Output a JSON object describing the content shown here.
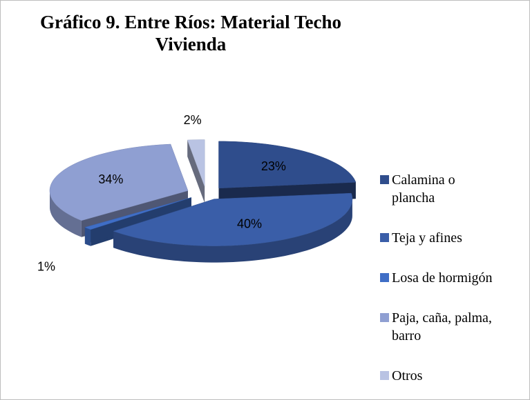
{
  "chart_data": {
    "type": "pie3d",
    "title": "Gráfico 9. Entre Ríos: Material Techo Vivienda",
    "categories": [
      "Calamina o plancha",
      "Teja y afines",
      "Losa de hormigón",
      "Paja, caña, palma, barro",
      "Otros"
    ],
    "values": [
      23,
      40,
      1,
      34,
      2
    ],
    "value_labels": [
      "23%",
      "40%",
      "1%",
      "34%",
      "2%"
    ],
    "colors": [
      "#2f4d8c",
      "#3a5ea8",
      "#3f6ec6",
      "#8f9fd2",
      "#b9c3e3"
    ],
    "legend": "right"
  }
}
